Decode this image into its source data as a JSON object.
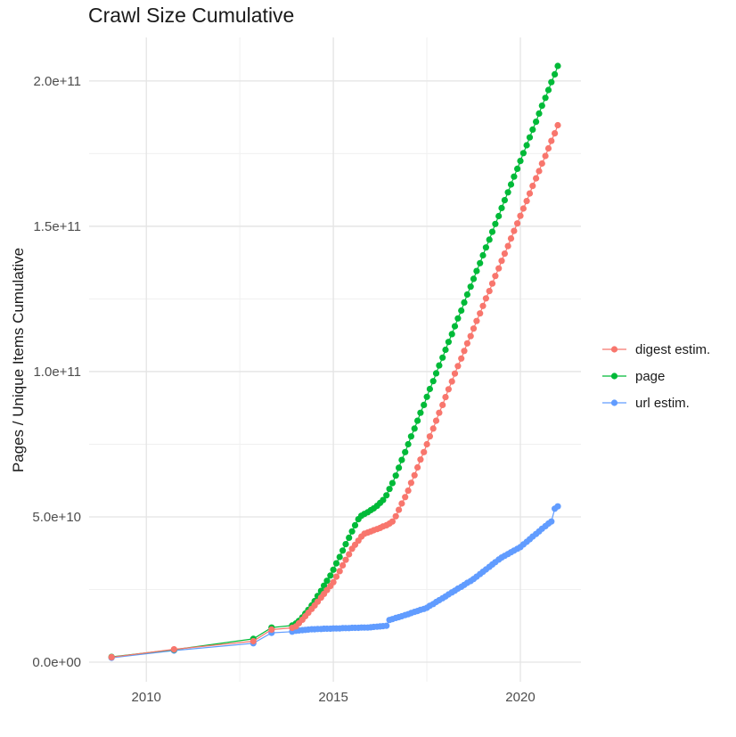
{
  "chart_data": {
    "type": "scatter",
    "title": "Crawl Size Cumulative",
    "xlabel": "",
    "ylabel": "Pages / Unique Items Cumulative",
    "value_unit": "1e9",
    "xlim": [
      2008.47,
      2021.62
    ],
    "ylim_e9": [
      -6.75,
      215.0
    ],
    "grid": true,
    "legend_position": "right",
    "x_ticks": [
      {
        "value": 2010,
        "label": "2010"
      },
      {
        "value": 2015,
        "label": "2015"
      },
      {
        "value": 2020,
        "label": "2020"
      }
    ],
    "x_minor_breaks": [
      2012.5,
      2017.5
    ],
    "y_ticks": [
      {
        "value_e9": 0,
        "label": "0.0e+00"
      },
      {
        "value_e9": 50,
        "label": "5.0e+10"
      },
      {
        "value_e9": 100,
        "label": "1.0e+11"
      },
      {
        "value_e9": 150,
        "label": "1.5e+11"
      },
      {
        "value_e9": 200,
        "label": "2.0e+11"
      }
    ],
    "y_minor_breaks_e9": [
      25,
      75,
      125,
      175
    ],
    "colors": {
      "grid_major": "#e4e4e4",
      "grid_minor": "#f0f0f0",
      "tick_text": "#4d4d4d",
      "title_text": "#1a1a1a"
    },
    "series": [
      {
        "name": "digest estim.",
        "color": "#F8766D",
        "points": [
          [
            2009.07,
            1.7
          ],
          [
            2010.74,
            4.4
          ],
          [
            2012.86,
            7.2
          ],
          [
            2013.35,
            11.2
          ],
          [
            2013.9,
            11.8
          ],
          [
            2014.0,
            12.3
          ],
          [
            2014.08,
            13.4
          ],
          [
            2014.17,
            14.6
          ],
          [
            2014.25,
            15.8
          ],
          [
            2014.33,
            17.0
          ],
          [
            2014.42,
            18.3
          ],
          [
            2014.5,
            19.5
          ],
          [
            2014.58,
            20.8
          ],
          [
            2014.67,
            22.2
          ],
          [
            2014.75,
            23.5
          ],
          [
            2014.83,
            24.8
          ],
          [
            2014.92,
            26.2
          ],
          [
            2015.0,
            27.5
          ],
          [
            2015.08,
            29.4
          ],
          [
            2015.17,
            31.3
          ],
          [
            2015.25,
            33.3
          ],
          [
            2015.33,
            35.2
          ],
          [
            2015.42,
            37.1
          ],
          [
            2015.5,
            39.0
          ],
          [
            2015.58,
            40.4
          ],
          [
            2015.67,
            41.8
          ],
          [
            2015.75,
            43.2
          ],
          [
            2015.83,
            44.2
          ],
          [
            2015.92,
            44.6
          ],
          [
            2016.0,
            45.0
          ],
          [
            2016.08,
            45.4
          ],
          [
            2016.17,
            45.8
          ],
          [
            2016.25,
            46.2
          ],
          [
            2016.33,
            46.7
          ],
          [
            2016.42,
            47.1
          ],
          [
            2016.5,
            47.7
          ],
          [
            2016.58,
            48.4
          ],
          [
            2016.67,
            50.2
          ],
          [
            2016.75,
            52.4
          ],
          [
            2016.83,
            54.6
          ],
          [
            2016.92,
            56.8
          ],
          [
            2017.0,
            59.0
          ],
          [
            2017.08,
            61.7
          ],
          [
            2017.17,
            64.3
          ],
          [
            2017.25,
            67.0
          ],
          [
            2017.33,
            69.7
          ],
          [
            2017.42,
            72.3
          ],
          [
            2017.5,
            75.0
          ],
          [
            2017.58,
            77.7
          ],
          [
            2017.67,
            80.4
          ],
          [
            2017.75,
            83.1
          ],
          [
            2017.83,
            85.8
          ],
          [
            2017.92,
            88.5
          ],
          [
            2018.0,
            91.2
          ],
          [
            2018.08,
            93.9
          ],
          [
            2018.17,
            96.6
          ],
          [
            2018.25,
            99.3
          ],
          [
            2018.33,
            101.9
          ],
          [
            2018.42,
            104.5
          ],
          [
            2018.5,
            107.1
          ],
          [
            2018.58,
            109.7
          ],
          [
            2018.67,
            112.2
          ],
          [
            2018.75,
            114.8
          ],
          [
            2018.83,
            117.4
          ],
          [
            2018.92,
            120.0
          ],
          [
            2019.0,
            122.6
          ],
          [
            2019.08,
            125.2
          ],
          [
            2019.17,
            127.7
          ],
          [
            2019.25,
            130.3
          ],
          [
            2019.33,
            132.9
          ],
          [
            2019.42,
            135.5
          ],
          [
            2019.5,
            138.1
          ],
          [
            2019.58,
            140.6
          ],
          [
            2019.67,
            143.2
          ],
          [
            2019.75,
            145.8
          ],
          [
            2019.83,
            148.4
          ],
          [
            2019.92,
            151.0
          ],
          [
            2020.0,
            153.6
          ],
          [
            2020.08,
            156.1
          ],
          [
            2020.17,
            158.7
          ],
          [
            2020.25,
            161.3
          ],
          [
            2020.33,
            163.9
          ],
          [
            2020.42,
            166.5
          ],
          [
            2020.5,
            169.0
          ],
          [
            2020.58,
            171.6
          ],
          [
            2020.67,
            174.2
          ],
          [
            2020.75,
            176.8
          ],
          [
            2020.83,
            179.4
          ],
          [
            2020.92,
            182.0
          ],
          [
            2021.0,
            184.8
          ]
        ]
      },
      {
        "name": "page",
        "color": "#00BA38",
        "points": [
          [
            2009.07,
            1.8
          ],
          [
            2010.74,
            4.3
          ],
          [
            2012.86,
            8.0
          ],
          [
            2013.35,
            11.9
          ],
          [
            2013.9,
            12.6
          ],
          [
            2014.0,
            13.3
          ],
          [
            2014.08,
            14.2
          ],
          [
            2014.17,
            15.4
          ],
          [
            2014.25,
            16.7
          ],
          [
            2014.33,
            18.0
          ],
          [
            2014.42,
            19.5
          ],
          [
            2014.5,
            21.0
          ],
          [
            2014.58,
            22.8
          ],
          [
            2014.67,
            24.5
          ],
          [
            2014.75,
            26.3
          ],
          [
            2014.83,
            28.0
          ],
          [
            2014.92,
            29.8
          ],
          [
            2015.0,
            31.8
          ],
          [
            2015.08,
            34.0
          ],
          [
            2015.17,
            36.2
          ],
          [
            2015.25,
            38.4
          ],
          [
            2015.33,
            40.6
          ],
          [
            2015.42,
            42.8
          ],
          [
            2015.5,
            45.0
          ],
          [
            2015.58,
            47.1
          ],
          [
            2015.67,
            49.2
          ],
          [
            2015.75,
            50.4
          ],
          [
            2015.83,
            51.0
          ],
          [
            2015.92,
            51.6
          ],
          [
            2016.0,
            52.3
          ],
          [
            2016.08,
            52.9
          ],
          [
            2016.17,
            53.8
          ],
          [
            2016.25,
            54.8
          ],
          [
            2016.33,
            55.8
          ],
          [
            2016.42,
            57.4
          ],
          [
            2016.5,
            59.6
          ],
          [
            2016.58,
            61.6
          ],
          [
            2016.67,
            64.2
          ],
          [
            2016.75,
            66.9
          ],
          [
            2016.83,
            69.6
          ],
          [
            2016.92,
            72.3
          ],
          [
            2017.0,
            75.0
          ],
          [
            2017.08,
            77.7
          ],
          [
            2017.17,
            80.4
          ],
          [
            2017.25,
            83.1
          ],
          [
            2017.33,
            85.8
          ],
          [
            2017.42,
            88.5
          ],
          [
            2017.5,
            91.3
          ],
          [
            2017.58,
            94.0
          ],
          [
            2017.67,
            96.7
          ],
          [
            2017.75,
            99.4
          ],
          [
            2017.83,
            102.1
          ],
          [
            2017.92,
            104.8
          ],
          [
            2018.0,
            107.5
          ],
          [
            2018.08,
            110.2
          ],
          [
            2018.17,
            112.9
          ],
          [
            2018.25,
            115.6
          ],
          [
            2018.33,
            118.3
          ],
          [
            2018.42,
            121.0
          ],
          [
            2018.5,
            123.8
          ],
          [
            2018.58,
            126.5
          ],
          [
            2018.67,
            129.2
          ],
          [
            2018.75,
            131.9
          ],
          [
            2018.83,
            134.6
          ],
          [
            2018.92,
            137.3
          ],
          [
            2019.0,
            140.0
          ],
          [
            2019.08,
            142.7
          ],
          [
            2019.17,
            145.4
          ],
          [
            2019.25,
            148.1
          ],
          [
            2019.33,
            150.8
          ],
          [
            2019.42,
            153.5
          ],
          [
            2019.5,
            156.3
          ],
          [
            2019.58,
            159.0
          ],
          [
            2019.67,
            161.7
          ],
          [
            2019.75,
            164.4
          ],
          [
            2019.83,
            167.1
          ],
          [
            2019.92,
            169.8
          ],
          [
            2020.0,
            172.5
          ],
          [
            2020.08,
            175.2
          ],
          [
            2020.17,
            177.9
          ],
          [
            2020.25,
            180.6
          ],
          [
            2020.33,
            183.3
          ],
          [
            2020.42,
            186.0
          ],
          [
            2020.5,
            188.8
          ],
          [
            2020.58,
            191.5
          ],
          [
            2020.67,
            194.2
          ],
          [
            2020.75,
            196.9
          ],
          [
            2020.83,
            199.6
          ],
          [
            2020.92,
            202.3
          ],
          [
            2021.0,
            205.2
          ]
        ]
      },
      {
        "name": "url estim.",
        "color": "#619CFF",
        "points": [
          [
            2009.07,
            1.5
          ],
          [
            2010.74,
            4.0
          ],
          [
            2012.86,
            6.5
          ],
          [
            2013.35,
            10.1
          ],
          [
            2013.9,
            10.5
          ],
          [
            2014.0,
            10.8
          ],
          [
            2014.08,
            10.9
          ],
          [
            2014.17,
            11.0
          ],
          [
            2014.25,
            11.1
          ],
          [
            2014.33,
            11.2
          ],
          [
            2014.42,
            11.3
          ],
          [
            2014.5,
            11.3
          ],
          [
            2014.58,
            11.4
          ],
          [
            2014.67,
            11.4
          ],
          [
            2014.75,
            11.5
          ],
          [
            2014.83,
            11.5
          ],
          [
            2014.92,
            11.5
          ],
          [
            2015.0,
            11.6
          ],
          [
            2015.08,
            11.6
          ],
          [
            2015.17,
            11.6
          ],
          [
            2015.25,
            11.7
          ],
          [
            2015.33,
            11.7
          ],
          [
            2015.42,
            11.7
          ],
          [
            2015.5,
            11.8
          ],
          [
            2015.58,
            11.8
          ],
          [
            2015.67,
            11.8
          ],
          [
            2015.75,
            11.9
          ],
          [
            2015.83,
            11.9
          ],
          [
            2015.92,
            11.9
          ],
          [
            2016.0,
            12.0
          ],
          [
            2016.08,
            12.1
          ],
          [
            2016.17,
            12.2
          ],
          [
            2016.25,
            12.3
          ],
          [
            2016.33,
            12.4
          ],
          [
            2016.42,
            12.5
          ],
          [
            2016.5,
            14.5
          ],
          [
            2016.58,
            14.8
          ],
          [
            2016.67,
            15.2
          ],
          [
            2016.75,
            15.5
          ],
          [
            2016.83,
            15.8
          ],
          [
            2016.92,
            16.2
          ],
          [
            2017.0,
            16.5
          ],
          [
            2017.08,
            16.9
          ],
          [
            2017.17,
            17.3
          ],
          [
            2017.25,
            17.6
          ],
          [
            2017.33,
            18.0
          ],
          [
            2017.42,
            18.3
          ],
          [
            2017.5,
            18.7
          ],
          [
            2017.58,
            19.4
          ],
          [
            2017.67,
            20.0
          ],
          [
            2017.75,
            20.7
          ],
          [
            2017.83,
            21.3
          ],
          [
            2017.92,
            22.0
          ],
          [
            2018.0,
            22.6
          ],
          [
            2018.08,
            23.3
          ],
          [
            2018.17,
            24.0
          ],
          [
            2018.25,
            24.6
          ],
          [
            2018.33,
            25.3
          ],
          [
            2018.42,
            25.9
          ],
          [
            2018.5,
            26.6
          ],
          [
            2018.58,
            27.3
          ],
          [
            2018.67,
            27.9
          ],
          [
            2018.75,
            28.6
          ],
          [
            2018.83,
            29.4
          ],
          [
            2018.92,
            30.3
          ],
          [
            2019.0,
            31.1
          ],
          [
            2019.08,
            31.9
          ],
          [
            2019.17,
            32.8
          ],
          [
            2019.25,
            33.6
          ],
          [
            2019.33,
            34.4
          ],
          [
            2019.42,
            35.3
          ],
          [
            2019.5,
            36.0
          ],
          [
            2019.58,
            36.6
          ],
          [
            2019.67,
            37.2
          ],
          [
            2019.75,
            37.8
          ],
          [
            2019.83,
            38.4
          ],
          [
            2019.92,
            39.0
          ],
          [
            2020.0,
            39.6
          ],
          [
            2020.08,
            40.5
          ],
          [
            2020.17,
            41.4
          ],
          [
            2020.25,
            42.3
          ],
          [
            2020.33,
            43.2
          ],
          [
            2020.42,
            44.1
          ],
          [
            2020.5,
            45.0
          ],
          [
            2020.58,
            45.9
          ],
          [
            2020.67,
            46.8
          ],
          [
            2020.75,
            47.7
          ],
          [
            2020.83,
            48.4
          ],
          [
            2020.92,
            52.8
          ],
          [
            2021.0,
            53.6
          ]
        ]
      }
    ]
  }
}
